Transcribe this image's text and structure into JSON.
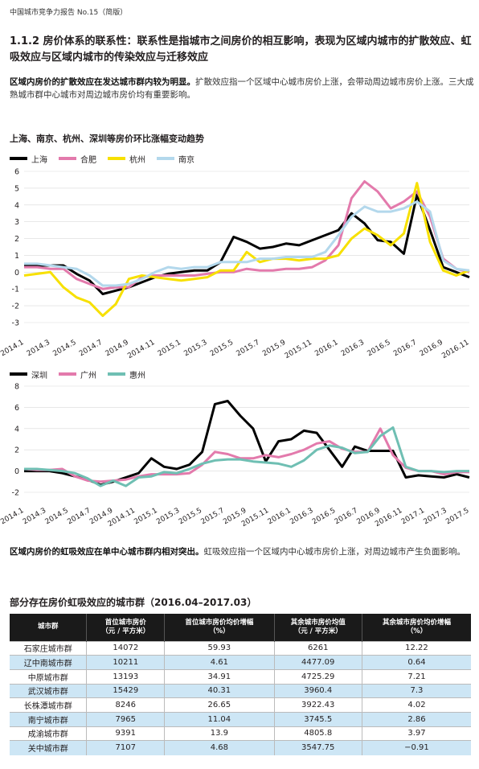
{
  "header": {
    "running_head": "中国城市竞争力报告 No.15（简版）"
  },
  "section": {
    "heading": "1.1.2 房价体系的联系性：联系性是指城市之间房价的相互影响，表现为区域内城市的扩散效应、虹吸效应与区域内城市的传染效应与迁移效应",
    "para1_bold": "区域内房价的扩散效应在发达城市群内较为明显。",
    "para1_text": "扩散效应指一个区域中心城市房价上涨，会带动周边城市房价上涨。三大成熟城市群中心城市对周边城市房价均有重要影响。",
    "para2_bold": "区域内房价的虹吸效应在单中心城市群内相对突出。",
    "para2_text": "虹吸效应指一个区域内中心城市房价上涨，对周边城市产生负面影响。"
  },
  "chart_data": [
    {
      "type": "line",
      "title": "上海、南京、杭州、深圳等房价环比涨幅变动趋势",
      "ylim": [
        -3,
        6
      ],
      "yticks": [
        -3,
        -2,
        -1,
        0,
        1,
        2,
        3,
        4,
        5,
        6
      ],
      "xticks": [
        "2014.1",
        "2014.3",
        "2014.5",
        "2014.7",
        "2014.9",
        "2014.11",
        "2015.1",
        "2015.3",
        "2015.5",
        "2015.7",
        "2015.9",
        "2015.11",
        "2016.1",
        "2016.3",
        "2016.5",
        "2016.7",
        "2016.9",
        "2016.11"
      ],
      "series": [
        {
          "name": "上海",
          "color": "#000000",
          "values": [
            0.4,
            0.4,
            0.4,
            0.4,
            -0.1,
            -0.5,
            -1.3,
            -1.1,
            -0.9,
            -0.6,
            -0.3,
            -0.1,
            0,
            0.1,
            0.1,
            0.6,
            2.1,
            1.8,
            1.4,
            1.5,
            1.7,
            1.6,
            1.9,
            2.2,
            2.5,
            3.5,
            2.9,
            1.9,
            1.8,
            1.1,
            4.6,
            2.5,
            0.3,
            0,
            -0.3
          ]
        },
        {
          "name": "合肥",
          "color": "#e37aac",
          "values": [
            0.3,
            0.3,
            0.2,
            0.2,
            -0.4,
            -0.7,
            -1.0,
            -0.9,
            -0.9,
            -0.3,
            -0.2,
            -0.2,
            -0.2,
            -0.2,
            -0.1,
            0,
            0.0,
            0.2,
            0.1,
            0.1,
            0.2,
            0.2,
            0.3,
            0.7,
            1.6,
            4.4,
            5.4,
            4.8,
            3.8,
            4.2,
            4.8,
            3.3,
            0.8,
            0.2,
            0
          ]
        },
        {
          "name": "杭州",
          "color": "#f7e000",
          "values": [
            -0.2,
            -0.1,
            0,
            -0.9,
            -1.5,
            -1.8,
            -2.6,
            -1.9,
            -0.4,
            -0.2,
            -0.3,
            -0.4,
            -0.5,
            -0.4,
            -0.3,
            0.1,
            0.1,
            1.2,
            0.6,
            0.8,
            0.8,
            0.7,
            0.8,
            0.8,
            1.0,
            2.0,
            2.6,
            2.2,
            1.6,
            2.3,
            5.3,
            1.8,
            0.1,
            -0.2,
            0.1
          ]
        },
        {
          "name": "南京",
          "color": "#b3d8ec",
          "values": [
            0.5,
            0.5,
            0.4,
            0.3,
            0.2,
            -0.2,
            -0.8,
            -0.8,
            -0.7,
            -0.4,
            0,
            0.3,
            0.2,
            0.3,
            0.3,
            0.6,
            0.6,
            0.6,
            0.8,
            0.8,
            0.9,
            0.9,
            0.9,
            1.2,
            2.2,
            3.3,
            3.9,
            3.6,
            3.6,
            3.8,
            4.2,
            3.6,
            0.7,
            0.2,
            0.1
          ]
        }
      ]
    },
    {
      "type": "line",
      "title": "",
      "ylim": [
        -2,
        8
      ],
      "yticks": [
        -2,
        0,
        2,
        4,
        6,
        8
      ],
      "xticks": [
        "2014.1",
        "2014.3",
        "2014.5",
        "2014.7",
        "2014.9",
        "2014.11",
        "2015.1",
        "2015.3",
        "2015.5",
        "2015.7",
        "2015.9",
        "2015.11",
        "2016.1",
        "2016.3",
        "2016.5",
        "2016.7",
        "2016.9",
        "2016.11",
        "2017.1",
        "2017.3",
        "2017.5"
      ],
      "series": [
        {
          "name": "深圳",
          "color": "#000000",
          "values": [
            0,
            0,
            0,
            -0.2,
            -0.5,
            -0.8,
            -1.3,
            -1.0,
            -0.6,
            -0.2,
            1.2,
            0.4,
            0.2,
            0.6,
            1.8,
            6.3,
            6.6,
            5.2,
            4.0,
            0.9,
            2.8,
            3.0,
            3.8,
            3.6,
            2.0,
            0.4,
            2.3,
            1.9,
            1.9,
            1.9,
            -0.6,
            -0.4,
            -0.5,
            -0.6,
            -0.3,
            -0.6
          ]
        },
        {
          "name": "广州",
          "color": "#e37aac",
          "values": [
            0.2,
            0.1,
            0.1,
            0.2,
            -0.5,
            -0.9,
            -1.0,
            -0.9,
            -0.8,
            -0.5,
            -0.3,
            -0.3,
            -0.3,
            -0.2,
            0.6,
            1.8,
            1.6,
            1.2,
            1.2,
            1.5,
            1.3,
            1.6,
            2.0,
            2.6,
            2.8,
            2.1,
            1.8,
            1.8,
            4.0,
            1.5,
            0.3,
            0,
            0,
            -0.3,
            -0.1,
            -0.1
          ]
        },
        {
          "name": "惠州",
          "color": "#6fbfb3",
          "values": [
            0.2,
            0.2,
            0.1,
            0,
            -0.2,
            -0.7,
            -1.4,
            -0.9,
            -1.4,
            -0.6,
            -0.5,
            -0.1,
            -0.2,
            0.2,
            0.7,
            1.0,
            1.1,
            1.1,
            0.9,
            0.8,
            0.7,
            0.4,
            1.0,
            2.0,
            2.4,
            2.2,
            1.7,
            1.8,
            3.3,
            4.1,
            0.4,
            0,
            0,
            -0.1,
            0,
            0
          ]
        }
      ]
    }
  ],
  "table": {
    "title": "部分存在房价虹吸效应的城市群（2016.04–2017.03）",
    "headers": [
      "城市群",
      "首位城市房价\n（元 / 平方米）",
      "首位城市房价均价增幅\n（%）",
      "其余城市房价均值\n（元 / 平方米）",
      "其余城市房价均价增幅\n（%）"
    ],
    "rows": [
      [
        "石家庄城市群",
        "14072",
        "59.93",
        "6261",
        "12.22"
      ],
      [
        "辽中南城市群",
        "10211",
        "4.61",
        "4477.09",
        "0.64"
      ],
      [
        "中原城市群",
        "13193",
        "34.91",
        "4725.29",
        "7.21"
      ],
      [
        "武汉城市群",
        "15429",
        "40.31",
        "3960.4",
        "7.3"
      ],
      [
        "长株潭城市群",
        "8246",
        "26.65",
        "3922.43",
        "4.02"
      ],
      [
        "南宁城市群",
        "7965",
        "11.04",
        "3745.5",
        "2.86"
      ],
      [
        "成渝城市群",
        "9391",
        "13.9",
        "4805.8",
        "3.97"
      ],
      [
        "关中城市群",
        "7107",
        "4.68",
        "3547.75",
        "−0.91"
      ]
    ]
  }
}
